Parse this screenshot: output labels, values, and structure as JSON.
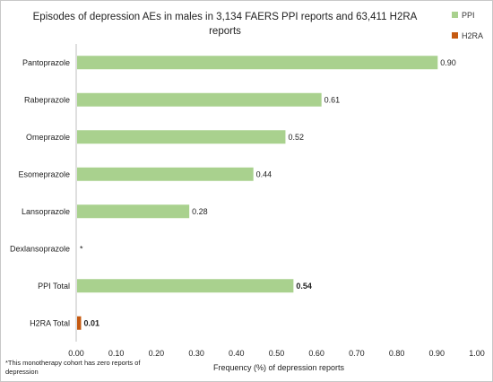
{
  "chart_data": {
    "type": "bar",
    "orientation": "horizontal",
    "title_lines": [
      "Episodes of depression AEs in males in 3,134 FAERS PPI reports and 63,411 H2RA",
      "reports"
    ],
    "categories": [
      "Pantoprazole",
      "Rabeprazole",
      "Omeprazole",
      "Esomeprazole",
      "Lansoprazole",
      "Dexlansoprazole",
      "PPI Total",
      "H2RA Total"
    ],
    "series": [
      {
        "name": "PPI",
        "color": "#a9d18e",
        "values": [
          0.9,
          0.61,
          0.52,
          0.44,
          0.28,
          null,
          0.54,
          null
        ]
      },
      {
        "name": "H2RA",
        "color": "#c55a11",
        "values": [
          null,
          null,
          null,
          null,
          null,
          null,
          null,
          0.01
        ]
      }
    ],
    "data_labels": [
      "0.90",
      "0.61",
      "0.52",
      "0.44",
      "0.28",
      "*",
      "0.54",
      "0.01"
    ],
    "bold_labels": [
      false,
      false,
      false,
      false,
      false,
      false,
      true,
      true
    ],
    "xlabel": "Frequency (%) of depression reports",
    "xlim": [
      0,
      1
    ],
    "x_ticks": [
      "0.00",
      "0.10",
      "0.20",
      "0.30",
      "0.40",
      "0.50",
      "0.60",
      "0.70",
      "0.80",
      "0.90",
      "1.00"
    ],
    "legend_position": "top-right",
    "grid": false,
    "footnote_lines": [
      "*This monotherapy cohort has zero reports of",
      "depression"
    ]
  }
}
